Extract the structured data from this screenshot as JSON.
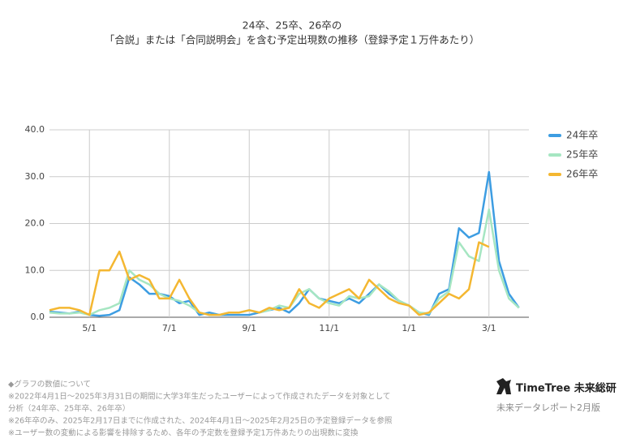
{
  "chart_data": {
    "type": "line",
    "title": "24卒、25卒、26卒の",
    "subtitle": "「合説」または「合同説明会」を含む予定出現数の推移（登録予定１万件あたり）",
    "categories": [
      null,
      null,
      null,
      null,
      "5/1",
      null,
      null,
      null,
      null,
      null,
      null,
      null,
      "7/1",
      null,
      null,
      null,
      null,
      null,
      null,
      null,
      "9/1",
      null,
      null,
      null,
      null,
      null,
      null,
      null,
      "11/1",
      null,
      null,
      null,
      null,
      null,
      null,
      null,
      "1/1",
      null,
      null,
      null,
      null,
      null,
      null,
      null,
      "3/1",
      null,
      null,
      null
    ],
    "series": [
      {
        "name": "24年卒",
        "color": "#3d9de2",
        "values": [
          1.2,
          1.0,
          0.8,
          1.2,
          0.5,
          0.3,
          0.5,
          1.5,
          8.5,
          7,
          5,
          5,
          4.5,
          3,
          3.5,
          0.5,
          1,
          0.5,
          0.5,
          0.5,
          0.5,
          1,
          1.5,
          2,
          1,
          3,
          6,
          4,
          3.5,
          3,
          4,
          3,
          5,
          7,
          5,
          3.5,
          2.5,
          1,
          0.5,
          5,
          6,
          19,
          17,
          18,
          31,
          12,
          5,
          2
        ]
      },
      {
        "name": "25年卒",
        "color": "#a6e6c2",
        "values": [
          1,
          0.8,
          0.8,
          1,
          0.5,
          1.5,
          2,
          3,
          10,
          8,
          7,
          5,
          4,
          3.5,
          2.5,
          1,
          0.5,
          0.5,
          1,
          1,
          1.5,
          1,
          1.5,
          2.5,
          2,
          5,
          6,
          4,
          3,
          2.5,
          4.5,
          4,
          4.5,
          7,
          5.5,
          3.5,
          2.5,
          1,
          0.8,
          4,
          5.5,
          16,
          13,
          12,
          23,
          10,
          4,
          2
        ]
      },
      {
        "name": "26年卒",
        "color": "#f4b731",
        "values": [
          1.5,
          2,
          2,
          1.5,
          0.5,
          10,
          10,
          14,
          8,
          9,
          8,
          4,
          4,
          8,
          4,
          1,
          0.5,
          0.5,
          1,
          1,
          1.5,
          1,
          2,
          1.5,
          2,
          6,
          3,
          2,
          4,
          5,
          6,
          4,
          8,
          6,
          4,
          3,
          2.5,
          0.5,
          1,
          3,
          5,
          4,
          6,
          16,
          15,
          null,
          null,
          null
        ]
      }
    ],
    "ylim": [
      0,
      40
    ],
    "yticks": [
      {
        "value": 0,
        "label": "0.0"
      },
      {
        "value": 10,
        "label": "10.0"
      },
      {
        "value": 20,
        "label": "20.0"
      },
      {
        "value": 30,
        "label": "30.0"
      },
      {
        "value": 40,
        "label": "40.0"
      }
    ],
    "grid": true,
    "legend": "right"
  },
  "footer": {
    "notes": [
      "◆グラフの数値について",
      "※2022年4月1日〜2025年3月31日の期間に大学3年生だったユーザーによって作成されたデータを対象として",
      "分析（24年卒、25年卒、26年卒）",
      "※26年卒のみ、2025年2月17日までに作成された、2024年4月1日〜2025年2月25日の予定登録データを参照",
      "※ユーザー数の変動による影響を排除するため、各年の予定数を登録予定1万件あたりの出現数に変換"
    ],
    "brand": "TimeTree 未来総研",
    "report": "未来データレポート2月版"
  }
}
